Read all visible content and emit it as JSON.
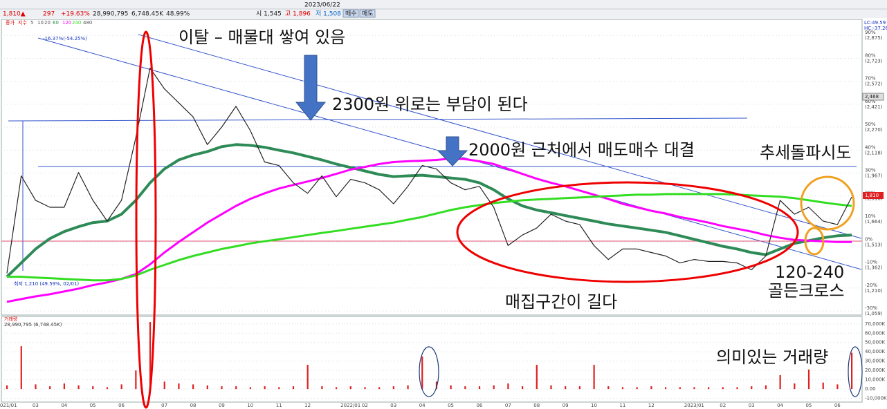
{
  "toolbar": {
    "items": [
      "1,810▲",
      "297",
      "+19.63%",
      "28,990,795",
      "6,748.45K",
      "48.99%",
      "시 1,545",
      "고 1,896",
      "저 1,508",
      "2023/06/22",
      "매수",
      "매도"
    ]
  },
  "chart_data": {
    "type": "line",
    "legend_extra": [
      "지수",
      "5",
      "10",
      "20",
      "480"
    ],
    "categories": [
      "2021/01",
      null,
      "03",
      null,
      "04",
      null,
      "05",
      null,
      "06",
      null,
      null,
      "07",
      null,
      "08",
      null,
      "09",
      null,
      "10",
      null,
      "11",
      null,
      "12",
      null,
      null,
      "2022/01",
      "02",
      null,
      "03",
      null,
      "04",
      null,
      "05",
      null,
      "06",
      null,
      "07",
      null,
      "08",
      null,
      "09",
      null,
      "10",
      null,
      "11",
      null,
      "12",
      null,
      null,
      "2023/01",
      null,
      "02",
      null,
      "03",
      null,
      "04",
      null,
      "05",
      null,
      "06",
      null
    ],
    "ylim": [
      1032,
      2980
    ],
    "yticks": [
      {
        "value": 1059,
        "label": "(1,059)"
      },
      {
        "value": 1210,
        "label": "(1,210)"
      },
      {
        "value": 1362,
        "label": "(1,362)"
      },
      {
        "value": 1513,
        "label": "(1,513)"
      },
      {
        "value": 1664,
        "label": "(1,664)"
      },
      {
        "value": 1816,
        "label": "(1,816)"
      },
      {
        "value": 1967,
        "label": "(1,967)"
      },
      {
        "value": 2118,
        "label": "(2,118)"
      },
      {
        "value": 2270,
        "label": "(2,270)"
      },
      {
        "value": 2421,
        "label": "(2,421)"
      },
      {
        "value": 2572,
        "label": "(2,572)"
      },
      {
        "value": 2723,
        "label": "(2,723)"
      },
      {
        "value": 2875,
        "label": "(2,875)"
      }
    ],
    "ytick_percents": [
      "-30%",
      "-20%",
      "-10%",
      "0%",
      "10%",
      "20%",
      "30%",
      "40%",
      "50%",
      "60%",
      "70%",
      "80%",
      "90%"
    ],
    "y2lim": [
      -14000,
      78000
    ],
    "y2ticks": [
      {
        "value": -10000,
        "label": "-10,000K"
      },
      {
        "value": 0,
        "label": "0.00"
      },
      {
        "value": 10000,
        "label": "10,000K"
      },
      {
        "value": 20000,
        "label": "20,000K"
      },
      {
        "value": 30000,
        "label": "30,000K"
      },
      {
        "value": 40000,
        "label": "40,000K"
      },
      {
        "value": 50000,
        "label": "50,000K"
      },
      {
        "value": 60000,
        "label": "60,000K"
      },
      {
        "value": 70000,
        "label": "70,000K"
      }
    ],
    "series": [
      {
        "name": "종가",
        "color": "#222222",
        "values": [
          1307,
          1949,
          1788,
          1742,
          1742,
          1971,
          1788,
          1651,
          1788,
          2201,
          2659,
          2522,
          2430,
          2338,
          2155,
          2270,
          2407,
          2247,
          2040,
          2017,
          1903,
          1834,
          1949,
          1811,
          1926,
          1903,
          1857,
          1765,
          1880,
          2017,
          1994,
          1903,
          1857,
          1880,
          1742,
          1490,
          1559,
          1605,
          1696,
          1651,
          1628,
          1490,
          1398,
          1467,
          1467,
          1444,
          1421,
          1375,
          1398,
          1385,
          1385,
          1375,
          1330,
          1421,
          1788,
          1696,
          1742,
          1651,
          1628,
          1810
        ]
      },
      {
        "name": "60",
        "color": "#2e8b57",
        "values": [
          1284,
          1375,
          1467,
          1536,
          1582,
          1614,
          1641,
          1651,
          1696,
          1788,
          1903,
          1994,
          2054,
          2086,
          2109,
          2141,
          2155,
          2150,
          2137,
          2118,
          2100,
          2077,
          2054,
          2027,
          2004,
          1981,
          1958,
          1944,
          1949,
          1953,
          1944,
          1935,
          1926,
          1903,
          1857,
          1797,
          1751,
          1724,
          1706,
          1687,
          1669,
          1651,
          1632,
          1618,
          1605,
          1591,
          1577,
          1554,
          1531,
          1508,
          1485,
          1467,
          1444,
          1430,
          1467,
          1504,
          1522,
          1541,
          1554,
          1559
        ]
      },
      {
        "name": "120",
        "color": "#ff00ff",
        "values": [
          1119,
          1137,
          1155,
          1169,
          1187,
          1206,
          1229,
          1247,
          1270,
          1302,
          1366,
          1444,
          1513,
          1577,
          1641,
          1696,
          1751,
          1797,
          1834,
          1866,
          1889,
          1912,
          1935,
          1962,
          1990,
          2008,
          2027,
          2040,
          2045,
          2049,
          2054,
          2063,
          2059,
          2045,
          2027,
          1994,
          1962,
          1930,
          1903,
          1880,
          1852,
          1825,
          1797,
          1765,
          1742,
          1719,
          1701,
          1678,
          1660,
          1641,
          1618,
          1600,
          1582,
          1559,
          1541,
          1527,
          1522,
          1518,
          1513,
          1513
        ]
      },
      {
        "name": "240",
        "color": "#33dd22",
        "values": [
          1284,
          1284,
          1279,
          1275,
          1270,
          1265,
          1261,
          1261,
          1270,
          1293,
          1330,
          1362,
          1394,
          1421,
          1444,
          1467,
          1485,
          1504,
          1518,
          1531,
          1545,
          1559,
          1573,
          1586,
          1600,
          1614,
          1628,
          1641,
          1660,
          1678,
          1701,
          1724,
          1742,
          1756,
          1770,
          1779,
          1788,
          1793,
          1797,
          1802,
          1806,
          1811,
          1816,
          1820,
          1825,
          1825,
          1829,
          1829,
          1829,
          1829,
          1829,
          1825,
          1820,
          1816,
          1811,
          1802,
          1788,
          1774,
          1761,
          1751
        ]
      },
      {
        "name": "거래량",
        "color": "#e02020",
        "type": "bar",
        "axis": "y2",
        "values": [
          4000,
          46000,
          5000,
          3000,
          6000,
          4000,
          3000,
          2000,
          5000,
          20000,
          72000,
          8000,
          6000,
          5000,
          4000,
          3000,
          3000,
          2000,
          3000,
          2000,
          3000,
          26000,
          3000,
          2000,
          3000,
          2000,
          2000,
          3000,
          4000,
          35000,
          8000,
          4000,
          3000,
          3000,
          4000,
          6000,
          3000,
          26000,
          4000,
          3000,
          3000,
          26000,
          3000,
          2000,
          2000,
          3000,
          2000,
          2000,
          2000,
          2000,
          2000,
          2000,
          3000,
          4000,
          15000,
          6000,
          21000,
          7000,
          5000,
          39000
        ]
      }
    ],
    "chart_notes": [
      "최저 1,210 (49.59%, 02/01)",
      "-16.37%(-54.25%)",
      "LC:49.59",
      "HC:-37.26",
      "1,810",
      "2,468",
      "28,990,795 (6,748.45K)"
    ]
  },
  "annotations": [
    "이탈 – 매물대 쌓여 있음",
    "2300원 위로는 부담이 된다",
    "2000원 근처에서 매도매수 대결",
    "추세돌파시도",
    "매집구간이 길다",
    "120-240",
    "골든크로스",
    "의미있는 거래량"
  ]
}
